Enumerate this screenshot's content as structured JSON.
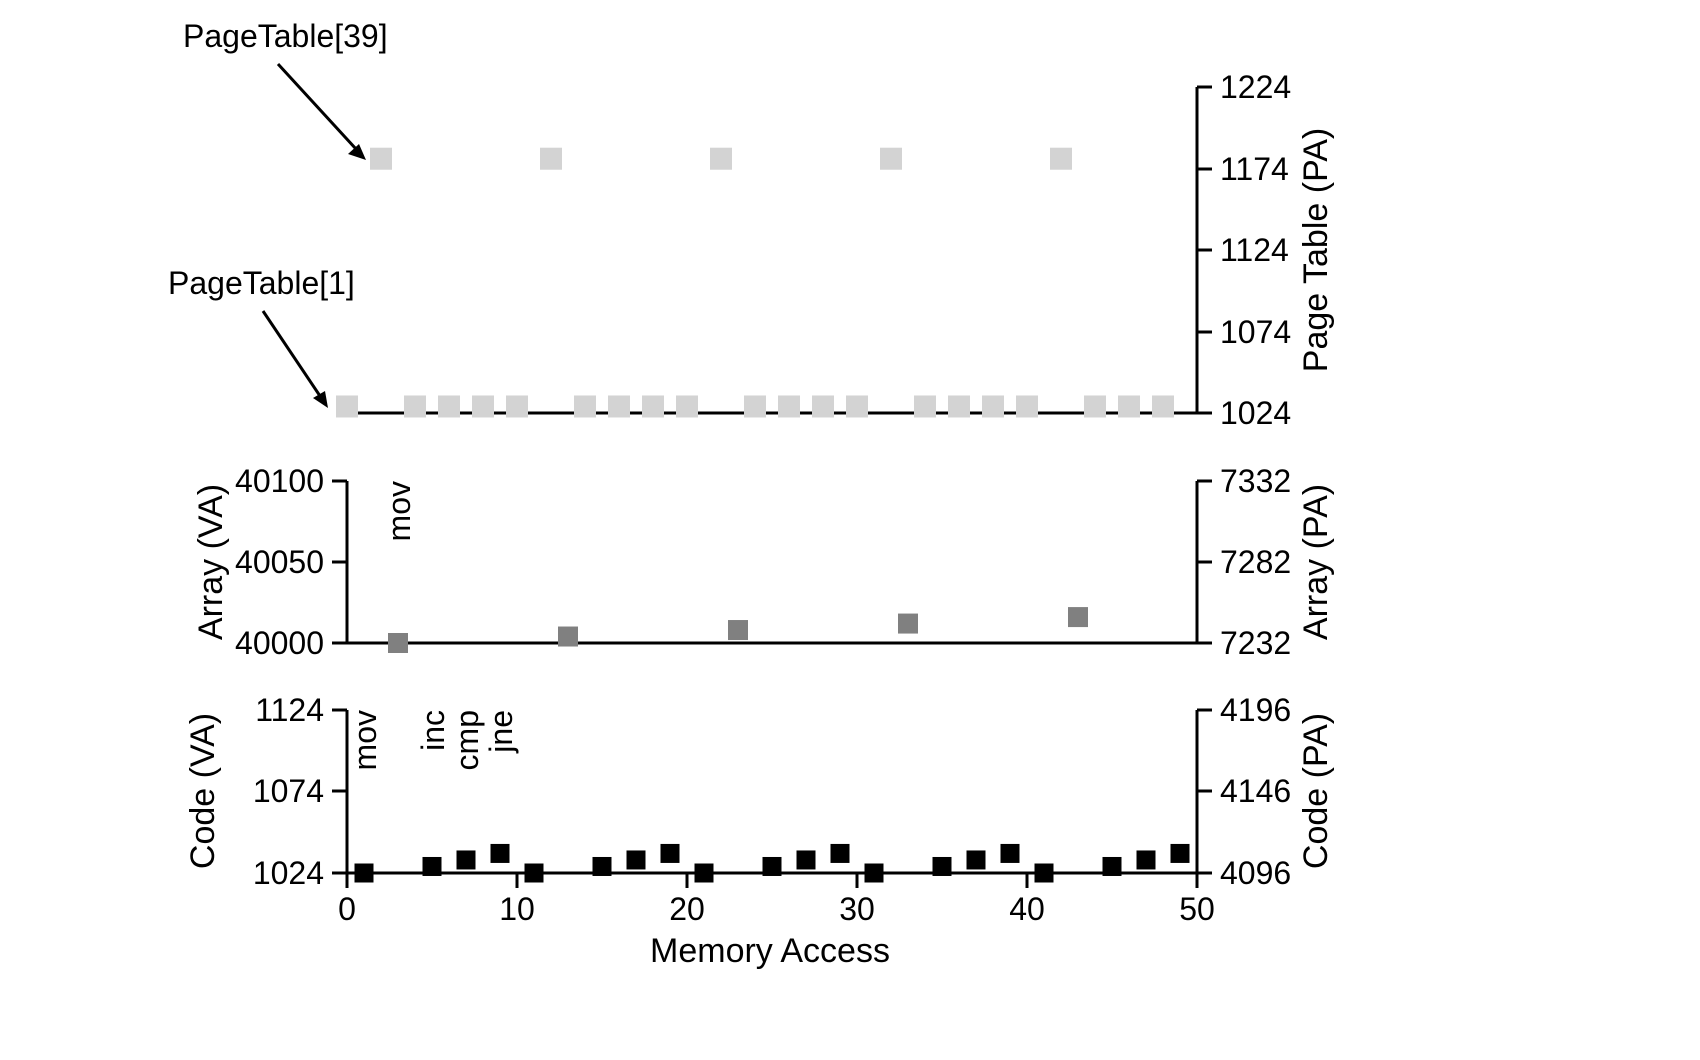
{
  "chart_data": {
    "type": "scatter",
    "xlabel": "Memory Access",
    "xlim": [
      0,
      50
    ],
    "xticks": [
      0,
      10,
      20,
      30,
      40,
      50
    ],
    "grid": false,
    "panels": [
      {
        "id": "page-table",
        "left_ylabel": "",
        "right_ylabel": "Page Table (PA)",
        "right_ylim": [
          1024,
          1224
        ],
        "right_ticks": [
          "1224",
          "1174",
          "1124",
          "1074",
          "1024"
        ],
        "marker_color": "#d3d3d3",
        "annotations": [
          "PageTable[39]",
          "PageTable[1]"
        ],
        "series": [
          {
            "x": [
              2,
              12,
              22,
              32,
              42
            ],
            "y": [
              1180,
              1180,
              1180,
              1180,
              1180
            ]
          },
          {
            "x": [
              0,
              4,
              6,
              8,
              10,
              14,
              16,
              18,
              20,
              24,
              26,
              28,
              30,
              34,
              36,
              38,
              40,
              44,
              46,
              48
            ],
            "y": [
              1028,
              1028,
              1028,
              1028,
              1028,
              1028,
              1028,
              1028,
              1028,
              1028,
              1028,
              1028,
              1028,
              1028,
              1028,
              1028,
              1028,
              1028,
              1028,
              1028
            ]
          }
        ]
      },
      {
        "id": "array",
        "left_ylabel": "Array (VA)",
        "right_ylabel": "Array (PA)",
        "left_ylim": [
          40000,
          40100
        ],
        "left_ticks": [
          "40100",
          "40050",
          "40000"
        ],
        "right_ticks": [
          "7332",
          "7282",
          "7232"
        ],
        "marker_color": "#808080",
        "instruction_labels": [
          {
            "text": "mov",
            "x": 3
          }
        ],
        "series": [
          {
            "x": [
              3,
              13,
              23,
              33,
              43
            ],
            "y": [
              40000,
              40004,
              40008,
              40012,
              40016
            ]
          }
        ]
      },
      {
        "id": "code",
        "left_ylabel": "Code (VA)",
        "right_ylabel": "Code (PA)",
        "left_ylim": [
          1024,
          1124
        ],
        "left_ticks": [
          "1124",
          "1074",
          "1024"
        ],
        "right_ticks": [
          "4196",
          "4146",
          "4096"
        ],
        "marker_color": "#000000",
        "instruction_labels": [
          {
            "text": "mov",
            "x": 1
          },
          {
            "text": "inc",
            "x": 5
          },
          {
            "text": "cmp",
            "x": 7
          },
          {
            "text": "jne",
            "x": 9
          }
        ],
        "series": [
          {
            "x": [
              1,
              5,
              7,
              9,
              11,
              15,
              17,
              19,
              21,
              25,
              27,
              29,
              31,
              35,
              37,
              39,
              41,
              45,
              47,
              49
            ],
            "y": [
              1024,
              1028,
              1032,
              1036,
              1024,
              1028,
              1032,
              1036,
              1024,
              1028,
              1032,
              1036,
              1024,
              1028,
              1032,
              1036,
              1024,
              1028,
              1032,
              1036
            ]
          }
        ]
      }
    ]
  }
}
